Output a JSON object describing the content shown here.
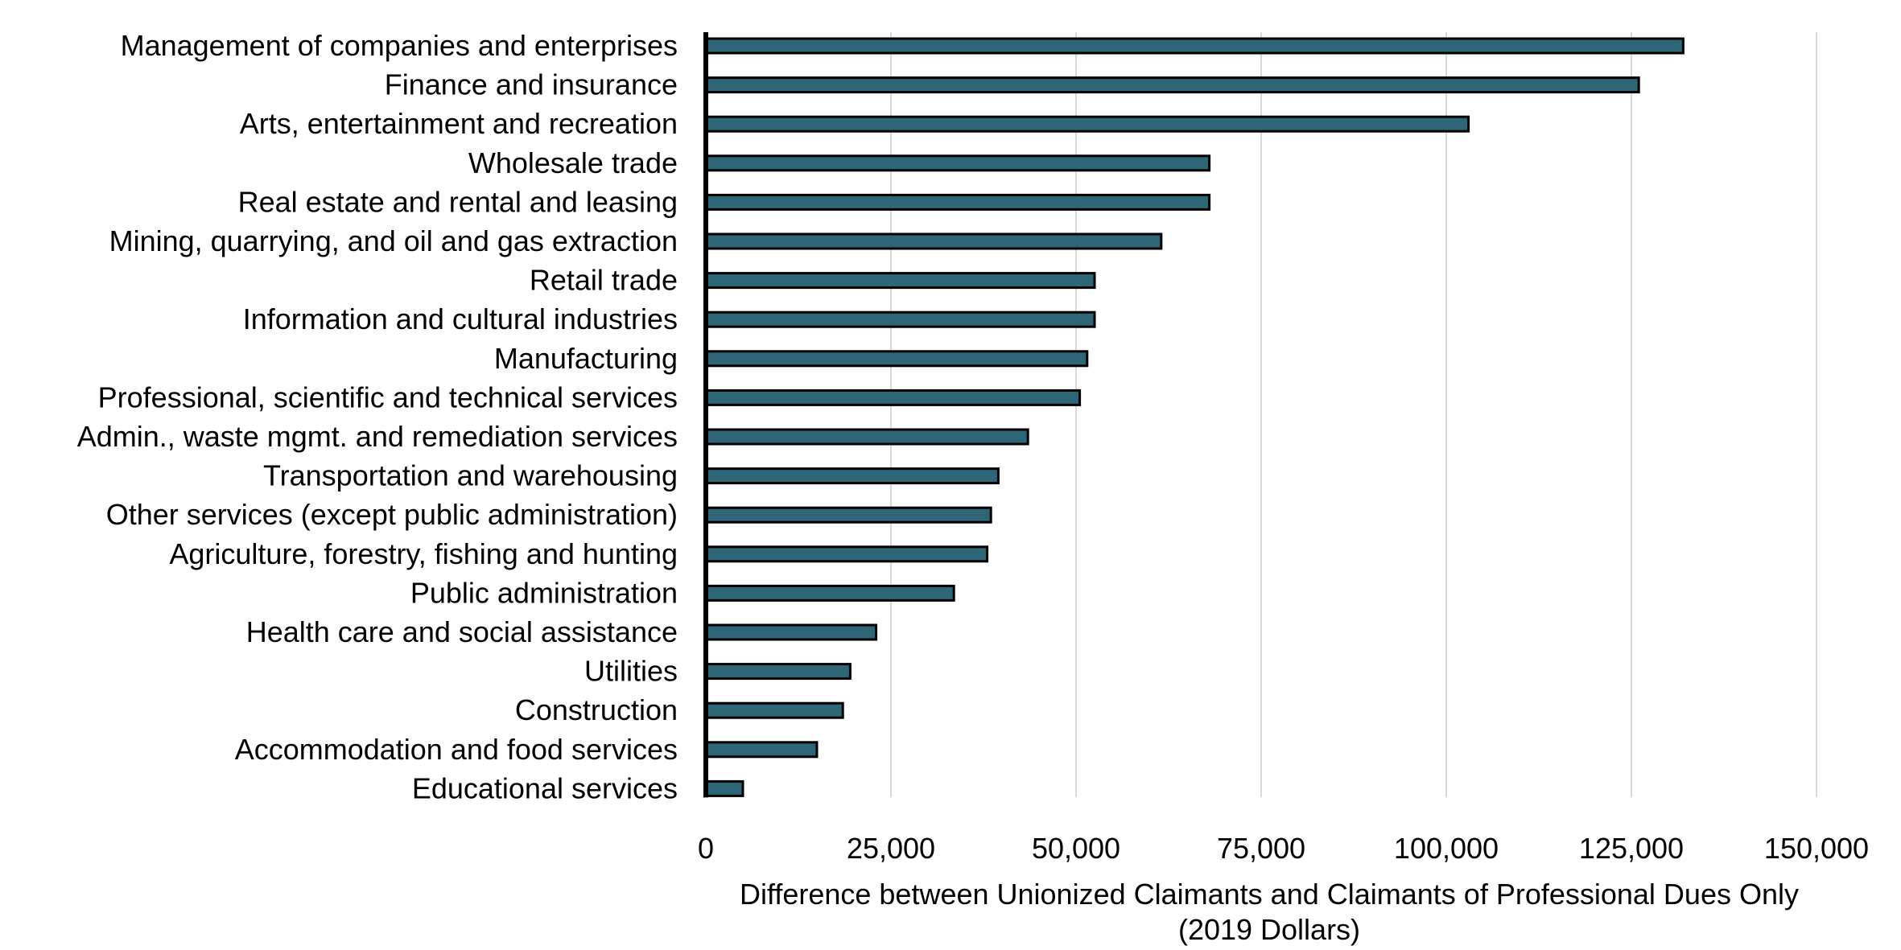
{
  "chart_data": {
    "type": "bar",
    "orientation": "horizontal",
    "title": "",
    "xlabel_line1": "Difference between Unionized Claimants and Claimants of Professional Dues Only",
    "xlabel_line2": "(2019 Dollars)",
    "ylabel": "",
    "xlim": [
      0,
      150000
    ],
    "xticks": [
      0,
      25000,
      50000,
      75000,
      100000,
      125000,
      150000
    ],
    "xtick_labels": [
      "0",
      "25,000",
      "50,000",
      "75,000",
      "100,000",
      "125,000",
      "150,000"
    ],
    "grid": "vertical",
    "bar_color": "#2e6577",
    "categories": [
      "Management of companies and enterprises",
      "Finance and insurance",
      "Arts, entertainment and recreation",
      "Wholesale trade",
      "Real estate and rental and leasing",
      "Mining, quarrying, and oil and gas extraction",
      "Retail trade",
      "Information and cultural industries",
      "Manufacturing",
      "Professional, scientific and technical services",
      "Admin., waste mgmt. and remediation services",
      "Transportation and warehousing",
      "Other services (except public administration)",
      "Agriculture, forestry, fishing and hunting",
      "Public administration",
      "Health care and social assistance",
      "Utilities",
      "Construction",
      "Accommodation and food services",
      "Educational services"
    ],
    "values": [
      132000,
      126000,
      103000,
      68000,
      68000,
      61500,
      52500,
      52500,
      51500,
      50500,
      43500,
      39500,
      38500,
      38000,
      33500,
      23000,
      19500,
      18500,
      15000,
      5000
    ]
  }
}
